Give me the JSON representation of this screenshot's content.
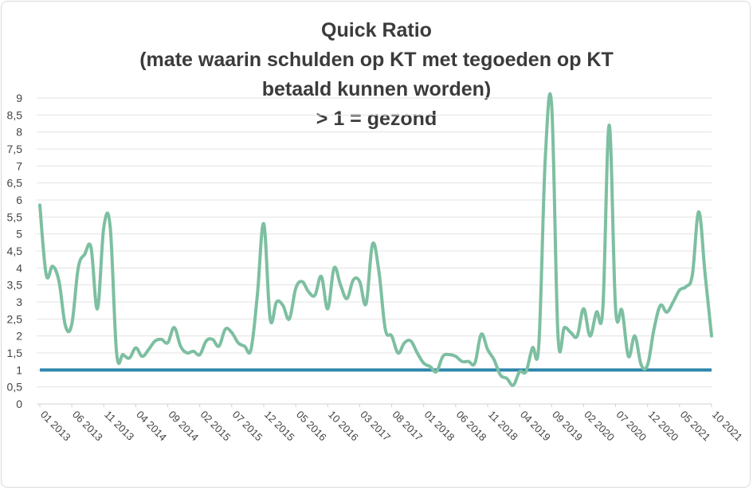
{
  "chart_data": {
    "type": "line",
    "title_lines": [
      "Quick Ratio",
      "(mate waarin schulden op KT met tegoeden op KT",
      "betaald kunnen worden)",
      "> 1 = gezond"
    ],
    "ylim": [
      0,
      9
    ],
    "y_ticks": [
      "0",
      "0,5",
      "1",
      "1,5",
      "2",
      "2,5",
      "3",
      "3,5",
      "4",
      "4,5",
      "5",
      "5,5",
      "6",
      "6,5",
      "7",
      "7,5",
      "8",
      "8,5",
      "9"
    ],
    "x_ticks": [
      {
        "label": "01 2013",
        "index": 0
      },
      {
        "label": "06 2013",
        "index": 5
      },
      {
        "label": "11 2013",
        "index": 10
      },
      {
        "label": "04 2014",
        "index": 15
      },
      {
        "label": "09 2014",
        "index": 20
      },
      {
        "label": "02 2015",
        "index": 25
      },
      {
        "label": "07 2015",
        "index": 30
      },
      {
        "label": "12 2015",
        "index": 35
      },
      {
        "label": "05 2016",
        "index": 40
      },
      {
        "label": "10 2016",
        "index": 45
      },
      {
        "label": "03 2017",
        "index": 50
      },
      {
        "label": "08 2017",
        "index": 55
      },
      {
        "label": "01 2018",
        "index": 60
      },
      {
        "label": "06 2018",
        "index": 65
      },
      {
        "label": "11 2018",
        "index": 70
      },
      {
        "label": "04 2019",
        "index": 75
      },
      {
        "label": "09 2019",
        "index": 80
      },
      {
        "label": "02 2020",
        "index": 85
      },
      {
        "label": "07 2020",
        "index": 90
      },
      {
        "label": "12 2020",
        "index": 95
      },
      {
        "label": "05 2021",
        "index": 100
      },
      {
        "label": "10 2021",
        "index": 105
      }
    ],
    "grid": true,
    "series": [
      {
        "color": "#7dbfa1",
        "values": [
          5.85,
          3.8,
          4.05,
          3.6,
          2.3,
          2.35,
          4.0,
          4.4,
          4.6,
          2.8,
          5.2,
          5.2,
          1.5,
          1.45,
          1.35,
          1.65,
          1.4,
          1.6,
          1.85,
          1.9,
          1.8,
          2.25,
          1.7,
          1.5,
          1.55,
          1.45,
          1.85,
          1.9,
          1.7,
          2.2,
          2.1,
          1.8,
          1.7,
          1.6,
          3.2,
          5.3,
          2.5,
          3.0,
          2.9,
          2.5,
          3.4,
          3.6,
          3.3,
          3.2,
          3.75,
          2.8,
          4.0,
          3.5,
          3.1,
          3.65,
          3.6,
          2.95,
          4.7,
          3.9,
          2.2,
          2.0,
          1.5,
          1.8,
          1.85,
          1.5,
          1.2,
          1.1,
          0.95,
          1.4,
          1.45,
          1.4,
          1.25,
          1.25,
          1.2,
          2.05,
          1.6,
          1.3,
          0.85,
          0.75,
          0.55,
          0.95,
          0.95,
          1.65,
          1.75,
          7.2,
          8.8,
          2.0,
          2.25,
          2.1,
          2.0,
          2.8,
          2.0,
          2.7,
          2.8,
          8.2,
          2.8,
          2.75,
          1.4,
          2.0,
          1.15,
          1.15,
          2.2,
          2.9,
          2.7,
          3.0,
          3.35,
          3.45,
          3.8,
          5.65,
          3.8,
          2.0
        ]
      },
      {
        "color": "#2e86ab",
        "values": [
          1,
          1
        ]
      }
    ]
  }
}
